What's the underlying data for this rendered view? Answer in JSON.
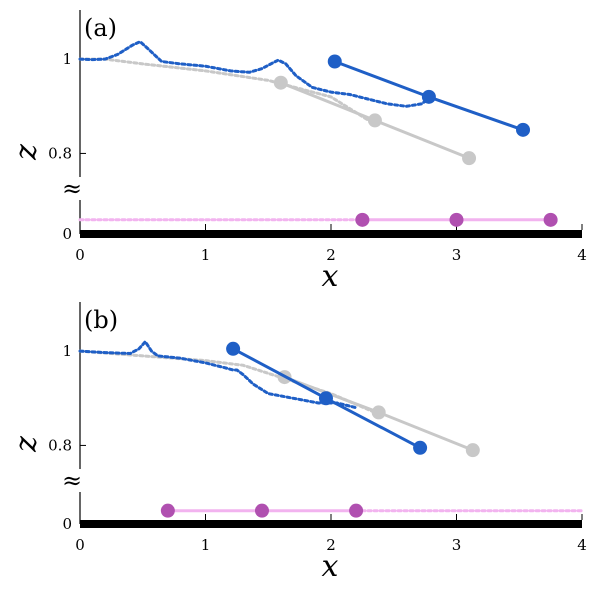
{
  "chart_data": [
    {
      "type": "line",
      "panel_label": "(a)",
      "xlabel": "x",
      "ylabel": "z",
      "xlim": [
        0,
        4
      ],
      "xticks": [
        "0",
        "1",
        "2",
        "3",
        "4"
      ],
      "ytick_labels": [
        "0",
        "0.8",
        "1"
      ],
      "axis_break": "≈",
      "colors": {
        "blue": "#1f5fc6",
        "gray": "#c8c8c8",
        "pink": "#f2b3ef",
        "dot_pink": "#b050b0",
        "ground": "#000000"
      },
      "series": [
        {
          "style": "dotted-blue",
          "x": [
            0,
            0.1,
            0.2,
            0.3,
            0.42,
            0.48,
            0.55,
            0.65,
            0.8,
            1.0,
            1.2,
            1.35,
            1.45,
            1.52,
            1.58,
            1.64,
            1.72,
            1.85,
            2.0,
            2.15,
            2.3,
            2.45,
            2.6,
            2.72,
            2.8
          ],
          "y": [
            1.0,
            0.999,
            1.0,
            1.01,
            1.03,
            1.037,
            1.02,
            0.995,
            0.99,
            0.985,
            0.975,
            0.972,
            0.98,
            0.99,
            0.998,
            0.99,
            0.965,
            0.94,
            0.93,
            0.925,
            0.915,
            0.905,
            0.9,
            0.905,
            0.92
          ]
        },
        {
          "style": "dotted-gray",
          "x": [
            0,
            0.2,
            0.5,
            1.0,
            1.5,
            2.0,
            2.3
          ],
          "y": [
            1.0,
            1.0,
            0.99,
            0.975,
            0.955,
            0.92,
            0.87
          ]
        },
        {
          "style": "solid-blue",
          "x": [
            2.03,
            2.78,
            3.53
          ],
          "y": [
            0.995,
            0.92,
            0.85
          ]
        },
        {
          "style": "solid-gray",
          "x": [
            1.6,
            2.35,
            3.1
          ],
          "y": [
            0.95,
            0.87,
            0.79
          ]
        },
        {
          "style": "dotted-pink",
          "x": [
            0,
            2.25
          ],
          "y": [
            0.025,
            0.025
          ]
        },
        {
          "style": "solid-pink",
          "x": [
            2.25,
            3.0,
            3.75
          ],
          "y": [
            0.025,
            0.025,
            0.025
          ]
        }
      ]
    },
    {
      "type": "line",
      "panel_label": "(b)",
      "xlabel": "x",
      "ylabel": "z",
      "xlim": [
        0,
        4
      ],
      "xticks": [
        "0",
        "1",
        "2",
        "3",
        "4"
      ],
      "ytick_labels": [
        "0",
        "0.8",
        "1"
      ],
      "axis_break": "≈",
      "colors": {
        "blue": "#1f5fc6",
        "gray": "#c8c8c8",
        "pink": "#f2b3ef",
        "dot_pink": "#b050b0",
        "ground": "#000000"
      },
      "series": [
        {
          "style": "dotted-blue",
          "x": [
            0,
            0.2,
            0.4,
            0.47,
            0.52,
            0.57,
            0.62,
            0.8,
            1.0,
            1.15,
            1.22,
            1.25,
            1.3,
            1.38,
            1.5,
            1.7,
            1.9,
            2.05,
            2.2
          ],
          "y": [
            1.0,
            0.997,
            0.995,
            1.005,
            1.02,
            1.0,
            0.99,
            0.985,
            0.975,
            0.965,
            0.96,
            0.96,
            0.95,
            0.93,
            0.91,
            0.9,
            0.89,
            0.89,
            0.88
          ]
        },
        {
          "style": "dotted-gray",
          "x": [
            0,
            0.5,
            1.0,
            1.3,
            1.65,
            2.0,
            2.35
          ],
          "y": [
            1.0,
            0.99,
            0.98,
            0.97,
            0.94,
            0.91,
            0.87
          ]
        },
        {
          "style": "solid-blue",
          "x": [
            1.22,
            1.96,
            2.71
          ],
          "y": [
            1.005,
            0.9,
            0.795
          ]
        },
        {
          "style": "solid-gray",
          "x": [
            1.63,
            2.38,
            3.13
          ],
          "y": [
            0.945,
            0.87,
            0.79
          ]
        },
        {
          "style": "solid-pink",
          "x": [
            0.7,
            1.45,
            2.2
          ],
          "y": [
            0.025,
            0.025,
            0.025
          ]
        },
        {
          "style": "dotted-pink",
          "x": [
            2.2,
            4.0
          ],
          "y": [
            0.025,
            0.025
          ]
        }
      ]
    }
  ]
}
